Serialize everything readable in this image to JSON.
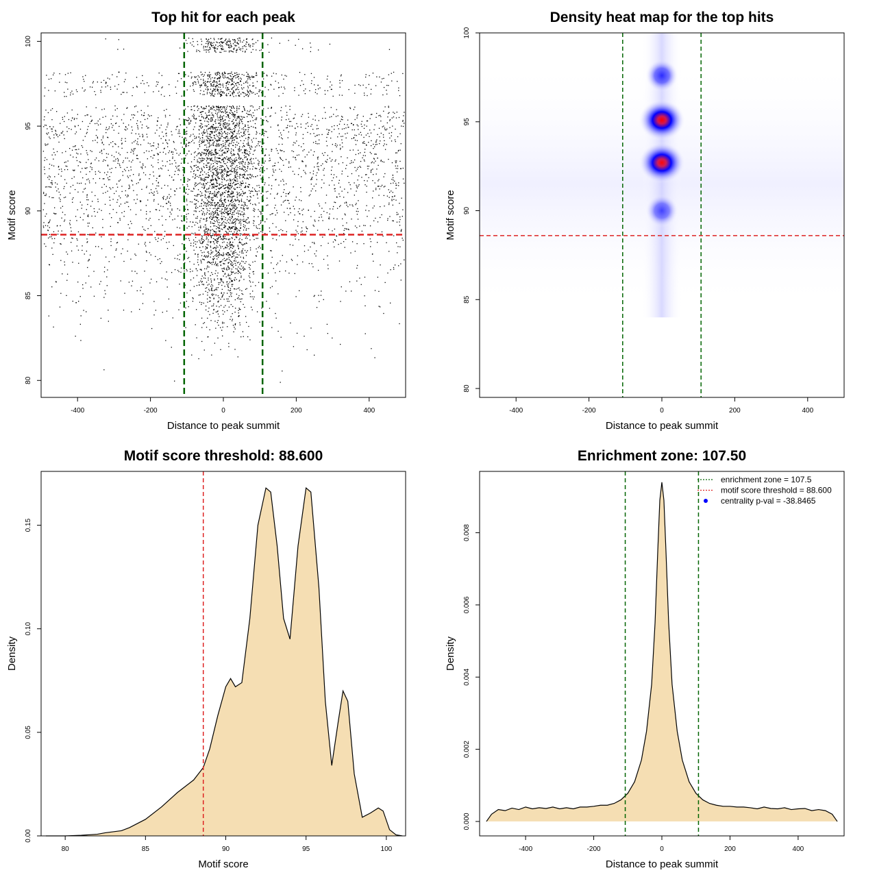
{
  "colors": {
    "vline": "#006400",
    "hline": "#dd2222",
    "fill": "#f5deb3",
    "points": "#000000",
    "heat_low": "#ffffff",
    "heat_mid": "#0000ff",
    "heat_high": "#ff0000",
    "legend_dot": "#0000ff"
  },
  "chart_data": [
    {
      "type": "scatter",
      "title": "Top hit for each peak",
      "xlabel": "Distance to peak summit",
      "ylabel": "Motif score",
      "xlim": [
        -500,
        500
      ],
      "ylim": [
        79,
        100.5
      ],
      "xticks": [
        -400,
        -200,
        0,
        200,
        400
      ],
      "yticks": [
        80,
        85,
        90,
        95,
        100
      ],
      "vlines": [
        -107.5,
        107.5
      ],
      "hlines": [
        88.6
      ],
      "points_note_free": true,
      "score_levels": [
        {
          "score": 100.0,
          "wide_density": 0.05,
          "center_density": 1.0
        },
        {
          "score": 99.6,
          "wide_density": 0.05,
          "center_density": 0.9
        },
        {
          "score": 98.0,
          "wide_density": 0.45,
          "center_density": 1.0
        },
        {
          "score": 97.5,
          "wide_density": 0.55,
          "center_density": 1.0
        },
        {
          "score": 97.0,
          "wide_density": 0.5,
          "center_density": 1.0
        },
        {
          "score": 96.0,
          "wide_density": 0.45,
          "center_density": 1.0
        },
        {
          "score": 95.5,
          "wide_density": 0.9,
          "center_density": 1.0
        },
        {
          "score": 95.0,
          "wide_density": 1.0,
          "center_density": 1.0
        },
        {
          "score": 94.5,
          "wide_density": 0.95,
          "center_density": 1.0
        },
        {
          "score": 94.0,
          "wide_density": 0.85,
          "center_density": 1.0
        },
        {
          "score": 93.5,
          "wide_density": 0.9,
          "center_density": 1.0
        },
        {
          "score": 93.0,
          "wide_density": 1.0,
          "center_density": 1.0
        },
        {
          "score": 92.5,
          "wide_density": 1.0,
          "center_density": 1.0
        },
        {
          "score": 92.0,
          "wide_density": 0.9,
          "center_density": 1.0
        },
        {
          "score": 91.5,
          "wide_density": 0.85,
          "center_density": 1.0
        },
        {
          "score": 91.0,
          "wide_density": 0.8,
          "center_density": 1.0
        },
        {
          "score": 90.5,
          "wide_density": 0.75,
          "center_density": 1.0
        },
        {
          "score": 90.0,
          "wide_density": 0.7,
          "center_density": 1.0
        },
        {
          "score": 89.5,
          "wide_density": 0.6,
          "center_density": 0.9
        },
        {
          "score": 89.0,
          "wide_density": 0.55,
          "center_density": 0.9
        },
        {
          "score": 88.5,
          "wide_density": 0.5,
          "center_density": 0.85
        },
        {
          "score": 88.0,
          "wide_density": 0.4,
          "center_density": 0.8
        },
        {
          "score": 87.5,
          "wide_density": 0.35,
          "center_density": 0.75
        },
        {
          "score": 87.0,
          "wide_density": 0.3,
          "center_density": 0.7
        },
        {
          "score": 86.5,
          "wide_density": 0.25,
          "center_density": 0.6
        },
        {
          "score": 86.0,
          "wide_density": 0.2,
          "center_density": 0.5
        },
        {
          "score": 85.5,
          "wide_density": 0.18,
          "center_density": 0.45
        },
        {
          "score": 85.0,
          "wide_density": 0.15,
          "center_density": 0.4
        },
        {
          "score": 84.5,
          "wide_density": 0.12,
          "center_density": 0.3
        },
        {
          "score": 84.0,
          "wide_density": 0.1,
          "center_density": 0.25
        },
        {
          "score": 83.5,
          "wide_density": 0.07,
          "center_density": 0.18
        },
        {
          "score": 83.0,
          "wide_density": 0.05,
          "center_density": 0.12
        },
        {
          "score": 82.5,
          "wide_density": 0.04,
          "center_density": 0.08
        },
        {
          "score": 82.0,
          "wide_density": 0.03,
          "center_density": 0.05
        },
        {
          "score": 81.5,
          "wide_density": 0.02,
          "center_density": 0.03
        },
        {
          "score": 80.5,
          "wide_density": 0.01,
          "center_density": 0.0
        },
        {
          "score": 79.8,
          "wide_density": 0.01,
          "center_density": 0.0
        }
      ]
    },
    {
      "type": "heatmap",
      "title": "Density heat map for the top hits",
      "xlabel": "Distance to peak summit",
      "ylabel": "Motif score",
      "xlim": [
        -500,
        500
      ],
      "ylim": [
        79.5,
        100
      ],
      "xticks": [
        -400,
        -200,
        0,
        200,
        400
      ],
      "yticks": [
        80,
        85,
        90,
        95,
        100
      ],
      "vlines": [
        -107.5,
        107.5
      ],
      "hlines": [
        88.6
      ],
      "hotspots": [
        {
          "x": 0,
          "y": 95.1,
          "intensity": 1.0
        },
        {
          "x": 0,
          "y": 92.7,
          "intensity": 0.95
        },
        {
          "x": 0,
          "y": 97.6,
          "intensity": 0.6
        },
        {
          "x": 0,
          "y": 90.0,
          "intensity": 0.4
        }
      ]
    },
    {
      "type": "area",
      "title": "Motif score threshold: 88.600",
      "xlabel": "Motif score",
      "ylabel": "Density",
      "xlim": [
        78.5,
        101.2
      ],
      "ylim": [
        0,
        0.176
      ],
      "xticks": [
        80,
        85,
        90,
        95,
        100
      ],
      "yticks": [
        0.0,
        0.05,
        0.1,
        0.15
      ],
      "ytick_labels": [
        "0.00",
        "0.05",
        "0.10",
        "0.15"
      ],
      "vlines": [
        88.6
      ],
      "x": [
        78.8,
        80,
        81,
        82,
        82.5,
        83,
        83.5,
        84,
        85,
        86,
        87,
        88,
        88.6,
        89,
        89.5,
        90,
        90.3,
        90.6,
        91,
        91.5,
        92,
        92.5,
        92.8,
        93.2,
        93.6,
        94,
        94.5,
        95,
        95.3,
        95.8,
        96.2,
        96.6,
        97,
        97.3,
        97.6,
        98,
        98.5,
        99,
        99.5,
        99.8,
        100.2,
        100.6,
        101
      ],
      "y": [
        0.0,
        0.0,
        0.0003,
        0.0008,
        0.0015,
        0.002,
        0.0025,
        0.004,
        0.008,
        0.014,
        0.021,
        0.027,
        0.033,
        0.042,
        0.058,
        0.072,
        0.076,
        0.072,
        0.074,
        0.105,
        0.15,
        0.168,
        0.166,
        0.14,
        0.105,
        0.095,
        0.14,
        0.168,
        0.166,
        0.12,
        0.065,
        0.034,
        0.055,
        0.07,
        0.065,
        0.03,
        0.009,
        0.011,
        0.0135,
        0.012,
        0.003,
        0.0005,
        0.0
      ]
    },
    {
      "type": "area",
      "title": "Enrichment zone: 107.50",
      "xlabel": "Distance to peak summit",
      "ylabel": "Density",
      "xlim": [
        -535,
        535
      ],
      "ylim": [
        -0.0004,
        0.0097
      ],
      "xticks": [
        -400,
        -200,
        0,
        200,
        400
      ],
      "yticks": [
        0.0,
        0.002,
        0.004,
        0.006,
        0.008
      ],
      "ytick_labels": [
        "0.000",
        "0.002",
        "0.004",
        "0.006",
        "0.008"
      ],
      "vlines": [
        -107.5,
        107.5
      ],
      "legend": {
        "position": "top-right",
        "entries": [
          {
            "label": "enrichment zone = 107.5",
            "style": "dotted-line",
            "color": "#006400"
          },
          {
            "label": "motif score threshold = 88.600",
            "style": "dotted-line",
            "color": "#dd2222"
          },
          {
            "label": "centrality p-val = -38.8465",
            "style": "dot",
            "color": "#0000ff"
          }
        ]
      },
      "x": [
        -515,
        -500,
        -480,
        -460,
        -440,
        -420,
        -400,
        -380,
        -360,
        -340,
        -320,
        -300,
        -280,
        -260,
        -240,
        -220,
        -200,
        -180,
        -160,
        -140,
        -120,
        -100,
        -80,
        -60,
        -45,
        -30,
        -20,
        -12,
        -6,
        0,
        6,
        12,
        20,
        30,
        45,
        60,
        80,
        100,
        120,
        140,
        160,
        180,
        200,
        220,
        240,
        260,
        280,
        300,
        320,
        340,
        360,
        380,
        400,
        420,
        440,
        460,
        480,
        500,
        515
      ],
      "y": [
        0.0,
        0.0002,
        0.00033,
        0.0003,
        0.00037,
        0.00033,
        0.0004,
        0.00035,
        0.00038,
        0.00036,
        0.0004,
        0.00035,
        0.00038,
        0.00035,
        0.0004,
        0.0004,
        0.00042,
        0.00045,
        0.00045,
        0.0005,
        0.0006,
        0.00078,
        0.0011,
        0.0017,
        0.0025,
        0.0038,
        0.0055,
        0.0075,
        0.0089,
        0.0094,
        0.0089,
        0.0075,
        0.0055,
        0.0038,
        0.0025,
        0.0017,
        0.0011,
        0.00078,
        0.0006,
        0.0005,
        0.00045,
        0.00042,
        0.00042,
        0.0004,
        0.0004,
        0.00038,
        0.00035,
        0.0004,
        0.00036,
        0.00035,
        0.00038,
        0.00033,
        0.00035,
        0.00036,
        0.0003,
        0.00033,
        0.0003,
        0.0002,
        0.0
      ]
    }
  ]
}
